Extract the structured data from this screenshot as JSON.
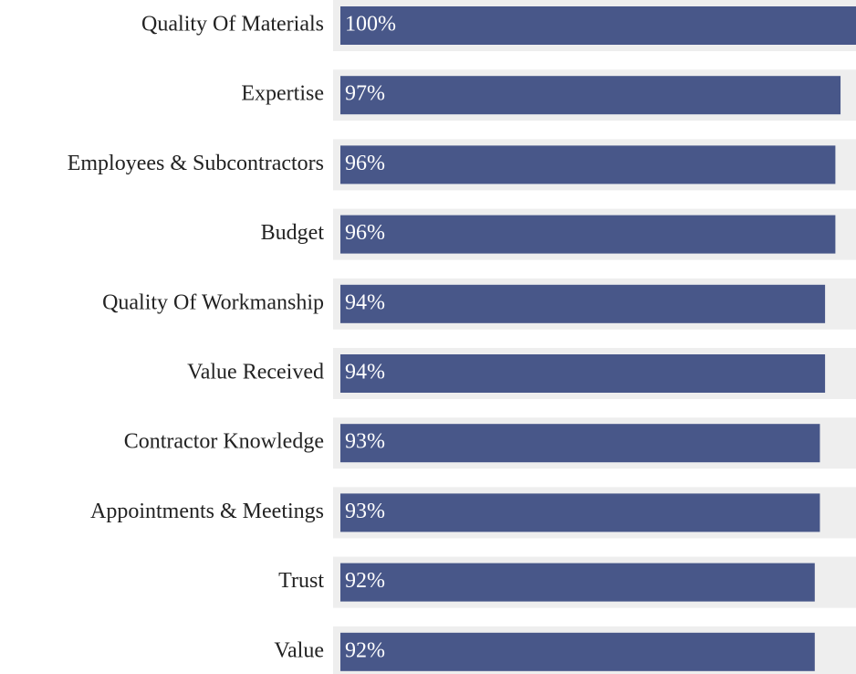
{
  "chart_data": {
    "type": "bar",
    "orientation": "horizontal",
    "categories": [
      "Quality Of Materials",
      "Expertise",
      "Employees & Subcontractors",
      "Budget",
      "Quality Of Workmanship",
      "Value Received",
      "Contractor Knowledge",
      "Appointments & Meetings",
      "Trust",
      "Value"
    ],
    "values": [
      100,
      97,
      96,
      96,
      94,
      94,
      93,
      93,
      92,
      92
    ],
    "value_labels": [
      "100%",
      "97%",
      "96%",
      "96%",
      "94%",
      "94%",
      "93%",
      "93%",
      "92%",
      "92%"
    ],
    "color": "#485789",
    "track_color": "#eeeeee",
    "xlim": [
      0,
      100
    ]
  }
}
